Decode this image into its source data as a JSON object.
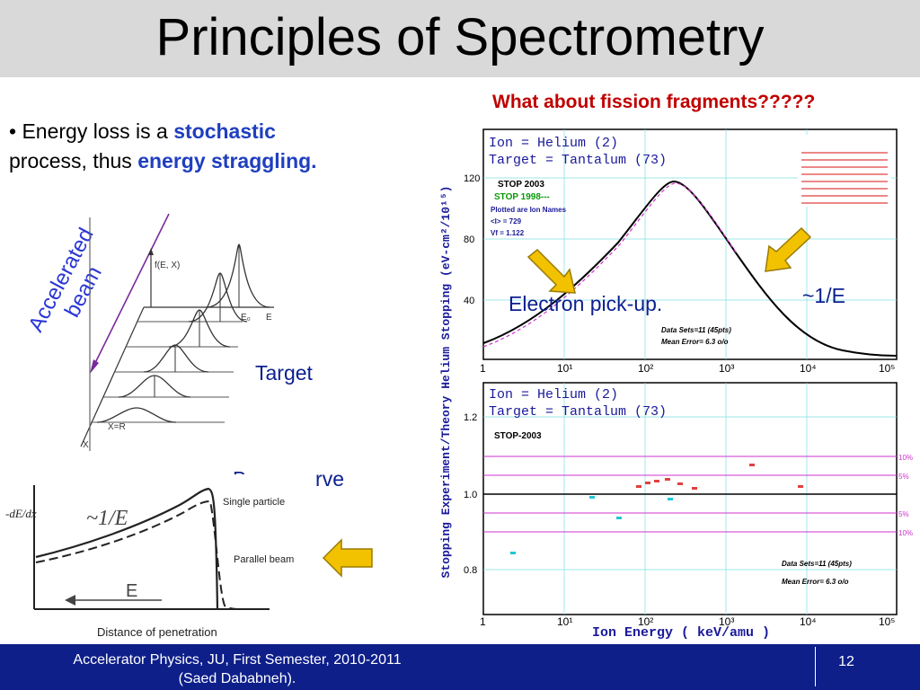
{
  "slide": {
    "title": "Principles of Spectrometry",
    "subtitle": "What about fission fragments?????",
    "bullet": {
      "marker": "•",
      "text1": " Energy loss is a ",
      "em1": "stochastic",
      "text2": "process, thus ",
      "em2": "energy straggling."
    },
    "beam_label_line1": "Accelerated",
    "beam_label_line2": "beam",
    "target_label": "Target",
    "bragg_label": "Bragg curve",
    "electron_label": "Electron pick-up.",
    "inv_e_label": "~1/E",
    "page_number": "12",
    "footer_line1": "Accelerator Physics, JU, First Semester, 2010-2011",
    "footer_line2": "(Saed Dababneh)."
  },
  "colors": {
    "title_bg": "#d9d9d9",
    "subtitle": "#c00000",
    "accent": "#1f3fbf",
    "footer_bg": "#0e1f8a",
    "arrow_fill": "#f2c200",
    "grid": "#7fdfe3"
  },
  "straggle_fig": {
    "fx_label": "f(E, X)",
    "e0_label": "E₀",
    "e_label": "E",
    "xr_label": "X=R",
    "x_label": "X"
  },
  "bragg_fig": {
    "y_label": "-dE/dx",
    "approx_label": "~1/E",
    "single_label": "Single particle",
    "parallel_label": "Parallel beam",
    "e_arrow_label": "E",
    "x_label": "Distance of penetration"
  },
  "plots": {
    "y_axis_label": "Stopping  Experiment/Theory  Helium Stopping (eV-cm²/10¹⁵)",
    "x_axis_label": "Ion  Energy  ( keV/amu )",
    "top": {
      "ion": "Ion = Helium (2)",
      "target": "Target = Tantalum (73)",
      "stop2003": "STOP 2003",
      "stop1998": "STOP 1998---",
      "plotted": "Plotted are Ion Names",
      "mean_i": "<I> = 729",
      "vf": "Vf  = 1.122",
      "data_sets": "Data Sets=11 (45pts)",
      "mean_error": "Mean Error=  6.3 o/o",
      "y_ticks": [
        "120",
        "80",
        "40"
      ],
      "x_ticks": [
        "1",
        "10¹",
        "10²",
        "10³",
        "10⁴",
        "10⁵"
      ]
    },
    "bottom": {
      "ion": "Ion = Helium (2)",
      "target": "Target = Tantalum (73)",
      "stop2003": "STOP-2003",
      "data_sets": "Data Sets=11 (45pts)",
      "mean_error": "Mean Error=  6.3 o/o",
      "y_ticks": [
        "1.2",
        "1.0",
        "0.8"
      ],
      "x_ticks": [
        "1",
        "10¹",
        "10²",
        "10³",
        "10⁴",
        "10⁵"
      ],
      "pct_labels": [
        "10%",
        "5%",
        "5%",
        "10%"
      ]
    }
  }
}
